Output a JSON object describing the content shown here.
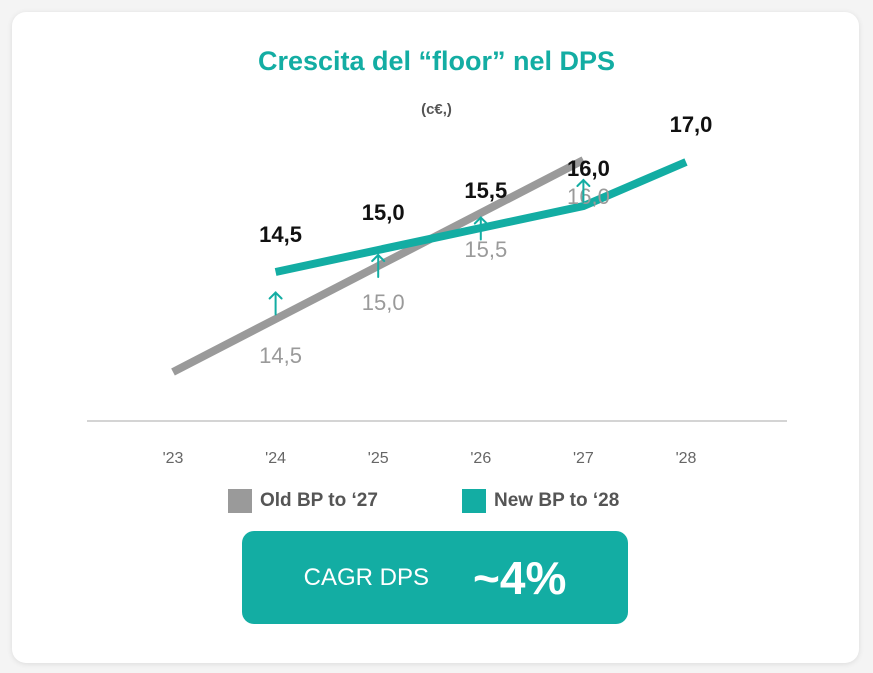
{
  "chart_data": {
    "type": "line",
    "title": "Crescita del “floor” nel DPS",
    "subtitle": "(c€,)",
    "x": [
      "'23",
      "'24",
      "'25",
      "'26",
      "'27",
      "'28"
    ],
    "series": [
      {
        "name": "Old BP to ‘27",
        "color": "#9a9a9a",
        "x": [
          "'23",
          "'24",
          "'25",
          "'26",
          "'27"
        ],
        "values": [
          14.0,
          14.5,
          15.0,
          15.5,
          16.0
        ],
        "labels": [
          null,
          "14,5",
          "15,0",
          "15,5",
          "16,0"
        ]
      },
      {
        "name": "New BP to ‘28",
        "color": "#13ada3",
        "x": [
          "'24",
          "'25",
          "'26",
          "'27",
          "'28"
        ],
        "values": [
          14.5,
          15.0,
          15.5,
          16.0,
          17.0
        ],
        "labels": [
          "14,5",
          "15,0",
          "15,5",
          "16,0",
          "17,0"
        ]
      }
    ],
    "uplift_arrows_at": [
      "'24",
      "'25",
      "'26",
      "'27"
    ],
    "grid": false,
    "legend_position": "bottom"
  },
  "legend": {
    "old": "Old BP to ‘27",
    "new": "New BP to ‘28"
  },
  "callout": {
    "label": "CAGR DPS",
    "value": "~4%"
  },
  "colors": {
    "accent": "#13ada3",
    "old_series": "#9a9a9a",
    "axis": "#bbbbbb"
  }
}
